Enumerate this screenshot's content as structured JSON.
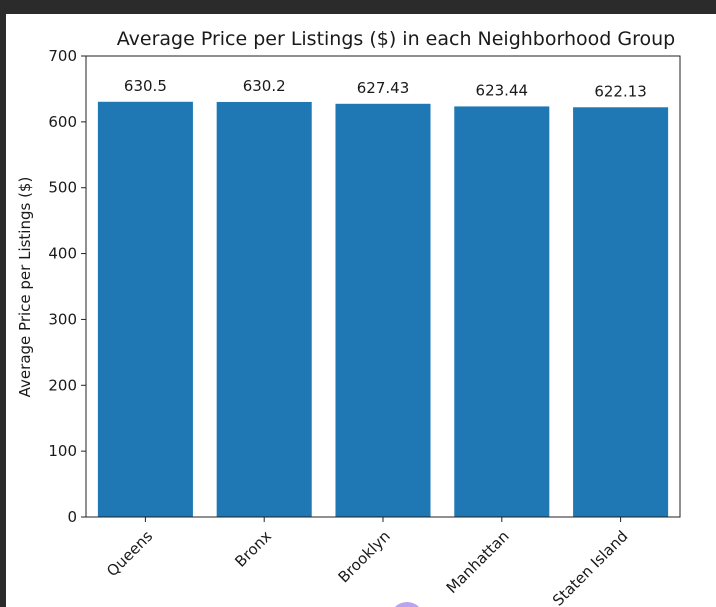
{
  "chart_data": {
    "type": "bar",
    "title": "Average Price per Listings ($) in each Neighborhood Group",
    "xlabel": "",
    "ylabel": "Average Price per Listings ($)",
    "categories": [
      "Queens",
      "Bronx",
      "Brooklyn",
      "Manhattan",
      "Staten Island"
    ],
    "values": [
      630.5,
      630.2,
      627.43,
      623.44,
      622.13
    ],
    "value_labels": [
      "630.5",
      "630.2",
      "627.43",
      "623.44",
      "622.13"
    ],
    "ylim": [
      0,
      700
    ],
    "yticks": [
      0,
      100,
      200,
      300,
      400,
      500,
      600,
      700
    ],
    "bar_color": "#1f77b4",
    "grid": false,
    "legend": "none"
  }
}
